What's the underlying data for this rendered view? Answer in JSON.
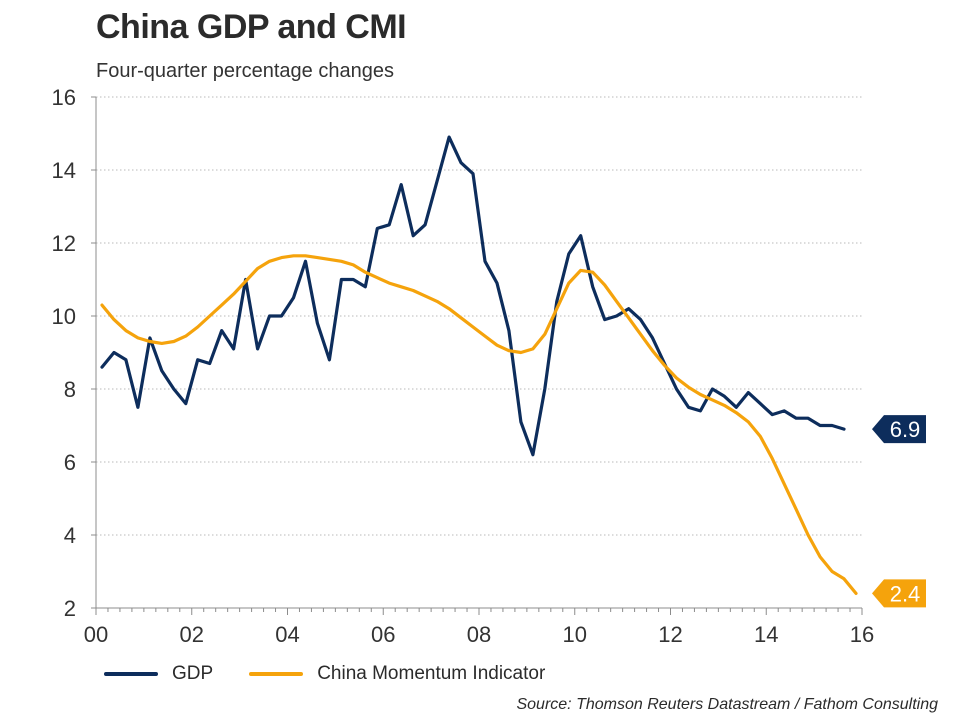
{
  "title": "China GDP and CMI",
  "subtitle": "Four-quarter percentage changes",
  "source": "Source: Thomson Reuters Datastream / Fathom Consulting",
  "colors": {
    "gdp": "#0d2d5c",
    "cmi": "#f5a30c",
    "grid": "#b9b9b9",
    "axis": "#8c8c8c",
    "text": "#333333"
  },
  "chart_data": {
    "type": "line",
    "ylim": [
      2,
      16
    ],
    "xlim": [
      2000,
      2016
    ],
    "y_ticks": [
      2,
      4,
      6,
      8,
      10,
      12,
      14,
      16
    ],
    "x_tick_labels": [
      "00",
      "02",
      "04",
      "06",
      "08",
      "10",
      "12",
      "14",
      "16"
    ],
    "grid": "horizontal dotted",
    "legend_position": "bottom",
    "series": [
      {
        "name": "GDP",
        "end_label": "6.9",
        "x": [
          2000.125,
          2000.375,
          2000.625,
          2000.875,
          2001.125,
          2001.375,
          2001.625,
          2001.875,
          2002.125,
          2002.375,
          2002.625,
          2002.875,
          2003.125,
          2003.375,
          2003.625,
          2003.875,
          2004.125,
          2004.375,
          2004.625,
          2004.875,
          2005.125,
          2005.375,
          2005.625,
          2005.875,
          2006.125,
          2006.375,
          2006.625,
          2006.875,
          2007.125,
          2007.375,
          2007.625,
          2007.875,
          2008.125,
          2008.375,
          2008.625,
          2008.875,
          2009.125,
          2009.375,
          2009.625,
          2009.875,
          2010.125,
          2010.375,
          2010.625,
          2010.875,
          2011.125,
          2011.375,
          2011.625,
          2011.875,
          2012.125,
          2012.375,
          2012.625,
          2012.875,
          2013.125,
          2013.375,
          2013.625,
          2013.875,
          2014.125,
          2014.375,
          2014.625,
          2014.875,
          2015.125,
          2015.375,
          2015.625
        ],
        "values": [
          8.6,
          9.0,
          8.8,
          7.5,
          9.4,
          8.5,
          8.0,
          7.6,
          8.8,
          8.7,
          9.6,
          9.1,
          11.0,
          9.1,
          10.0,
          10.0,
          10.5,
          11.5,
          9.8,
          8.8,
          11.0,
          11.0,
          10.8,
          12.4,
          12.5,
          13.6,
          12.2,
          12.5,
          13.7,
          14.9,
          14.2,
          13.9,
          11.5,
          10.9,
          9.6,
          7.1,
          6.2,
          8.0,
          10.4,
          11.7,
          12.2,
          10.8,
          9.9,
          10.0,
          10.2,
          9.9,
          9.4,
          8.7,
          8.0,
          7.5,
          7.4,
          8.0,
          7.8,
          7.5,
          7.9,
          7.6,
          7.3,
          7.4,
          7.2,
          7.2,
          7.0,
          7.0,
          6.9
        ]
      },
      {
        "name": "China Momentum Indicator",
        "end_label": "2.4",
        "x": [
          2000.125,
          2000.375,
          2000.625,
          2000.875,
          2001.125,
          2001.375,
          2001.625,
          2001.875,
          2002.125,
          2002.375,
          2002.625,
          2002.875,
          2003.125,
          2003.375,
          2003.625,
          2003.875,
          2004.125,
          2004.375,
          2004.625,
          2004.875,
          2005.125,
          2005.375,
          2005.625,
          2005.875,
          2006.125,
          2006.375,
          2006.625,
          2006.875,
          2007.125,
          2007.375,
          2007.625,
          2007.875,
          2008.125,
          2008.375,
          2008.625,
          2008.875,
          2009.125,
          2009.375,
          2009.625,
          2009.875,
          2010.125,
          2010.375,
          2010.625,
          2010.875,
          2011.125,
          2011.375,
          2011.625,
          2011.875,
          2012.125,
          2012.375,
          2012.625,
          2012.875,
          2013.125,
          2013.375,
          2013.625,
          2013.875,
          2014.125,
          2014.375,
          2014.625,
          2014.875,
          2015.125,
          2015.375,
          2015.625,
          2015.875
        ],
        "values": [
          10.3,
          9.9,
          9.6,
          9.4,
          9.3,
          9.25,
          9.3,
          9.45,
          9.7,
          10.0,
          10.3,
          10.6,
          10.95,
          11.3,
          11.5,
          11.6,
          11.65,
          11.65,
          11.6,
          11.55,
          11.5,
          11.4,
          11.2,
          11.05,
          10.9,
          10.8,
          10.7,
          10.55,
          10.4,
          10.2,
          9.95,
          9.7,
          9.45,
          9.2,
          9.05,
          9.0,
          9.1,
          9.5,
          10.2,
          10.9,
          11.25,
          11.2,
          10.85,
          10.4,
          9.95,
          9.5,
          9.05,
          8.65,
          8.3,
          8.05,
          7.85,
          7.7,
          7.55,
          7.35,
          7.1,
          6.7,
          6.1,
          5.4,
          4.7,
          4.0,
          3.4,
          3.0,
          2.8,
          2.4
        ]
      }
    ]
  }
}
